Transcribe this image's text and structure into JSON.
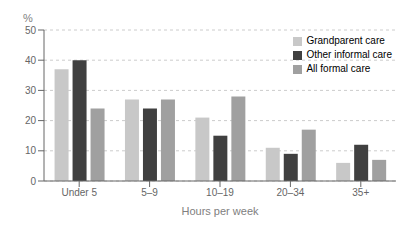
{
  "chart_data": {
    "type": "bar",
    "categories": [
      "Under 5",
      "5–9",
      "10–19",
      "20–34",
      "35+"
    ],
    "series": [
      {
        "name": "Grandparent care",
        "color": "#c8c8c8",
        "values": [
          37,
          27,
          21,
          11,
          6
        ]
      },
      {
        "name": "Other informal care",
        "color": "#404040",
        "values": [
          40,
          24,
          15,
          9,
          12
        ]
      },
      {
        "name": "All formal care",
        "color": "#a0a0a0",
        "values": [
          24,
          27,
          28,
          17,
          7
        ]
      }
    ],
    "xlabel": "Hours per week",
    "ylabel": "%",
    "ylim": [
      0,
      50
    ],
    "yticks": [
      0,
      10,
      20,
      30,
      40,
      50
    ],
    "grid": true,
    "legend": "upper right"
  }
}
